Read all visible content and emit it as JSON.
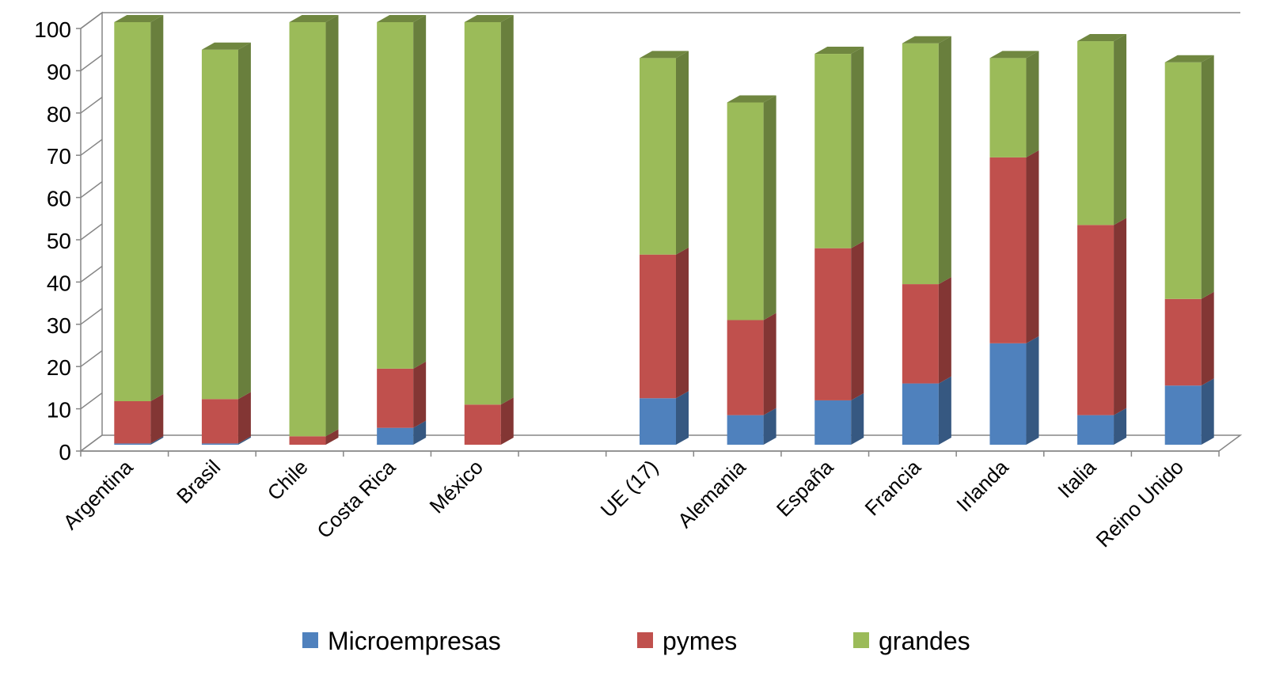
{
  "chart_data": {
    "type": "bar",
    "stacked": true,
    "style": "3d-column",
    "title": "",
    "xlabel": "",
    "ylabel": "",
    "ylim": [
      0,
      100
    ],
    "yticks": [
      0,
      10,
      20,
      30,
      40,
      50,
      60,
      70,
      80,
      90,
      100
    ],
    "ytick_labels": [
      "0",
      "10",
      "20",
      "30",
      "40",
      "50",
      "60",
      "70",
      "80",
      "90",
      "100"
    ],
    "grid": false,
    "legend_position": "bottom",
    "categories": [
      "Argentina",
      "Brasil",
      "Chile",
      "Costa Rica",
      "México",
      "",
      "UE (17)",
      "Alemania",
      "España",
      "Francia",
      "Irlanda",
      "Italia",
      "Reino Unido"
    ],
    "series": [
      {
        "name": "Microempresas",
        "color": "#4F81BD",
        "values": [
          0.3,
          0.3,
          0,
          4,
          0,
          null,
          11,
          7,
          10.5,
          14.5,
          24,
          7,
          14
        ]
      },
      {
        "name": "pymes",
        "color": "#C0504D",
        "values": [
          10,
          10.5,
          2,
          14,
          9.5,
          null,
          34,
          22.5,
          36,
          23.5,
          44,
          45,
          20.5
        ]
      },
      {
        "name": "grandes",
        "color": "#9BBB59",
        "values": [
          89.7,
          82.7,
          98,
          82,
          90.5,
          null,
          46.5,
          51.5,
          46,
          57,
          23.5,
          43.5,
          56
        ]
      }
    ]
  }
}
